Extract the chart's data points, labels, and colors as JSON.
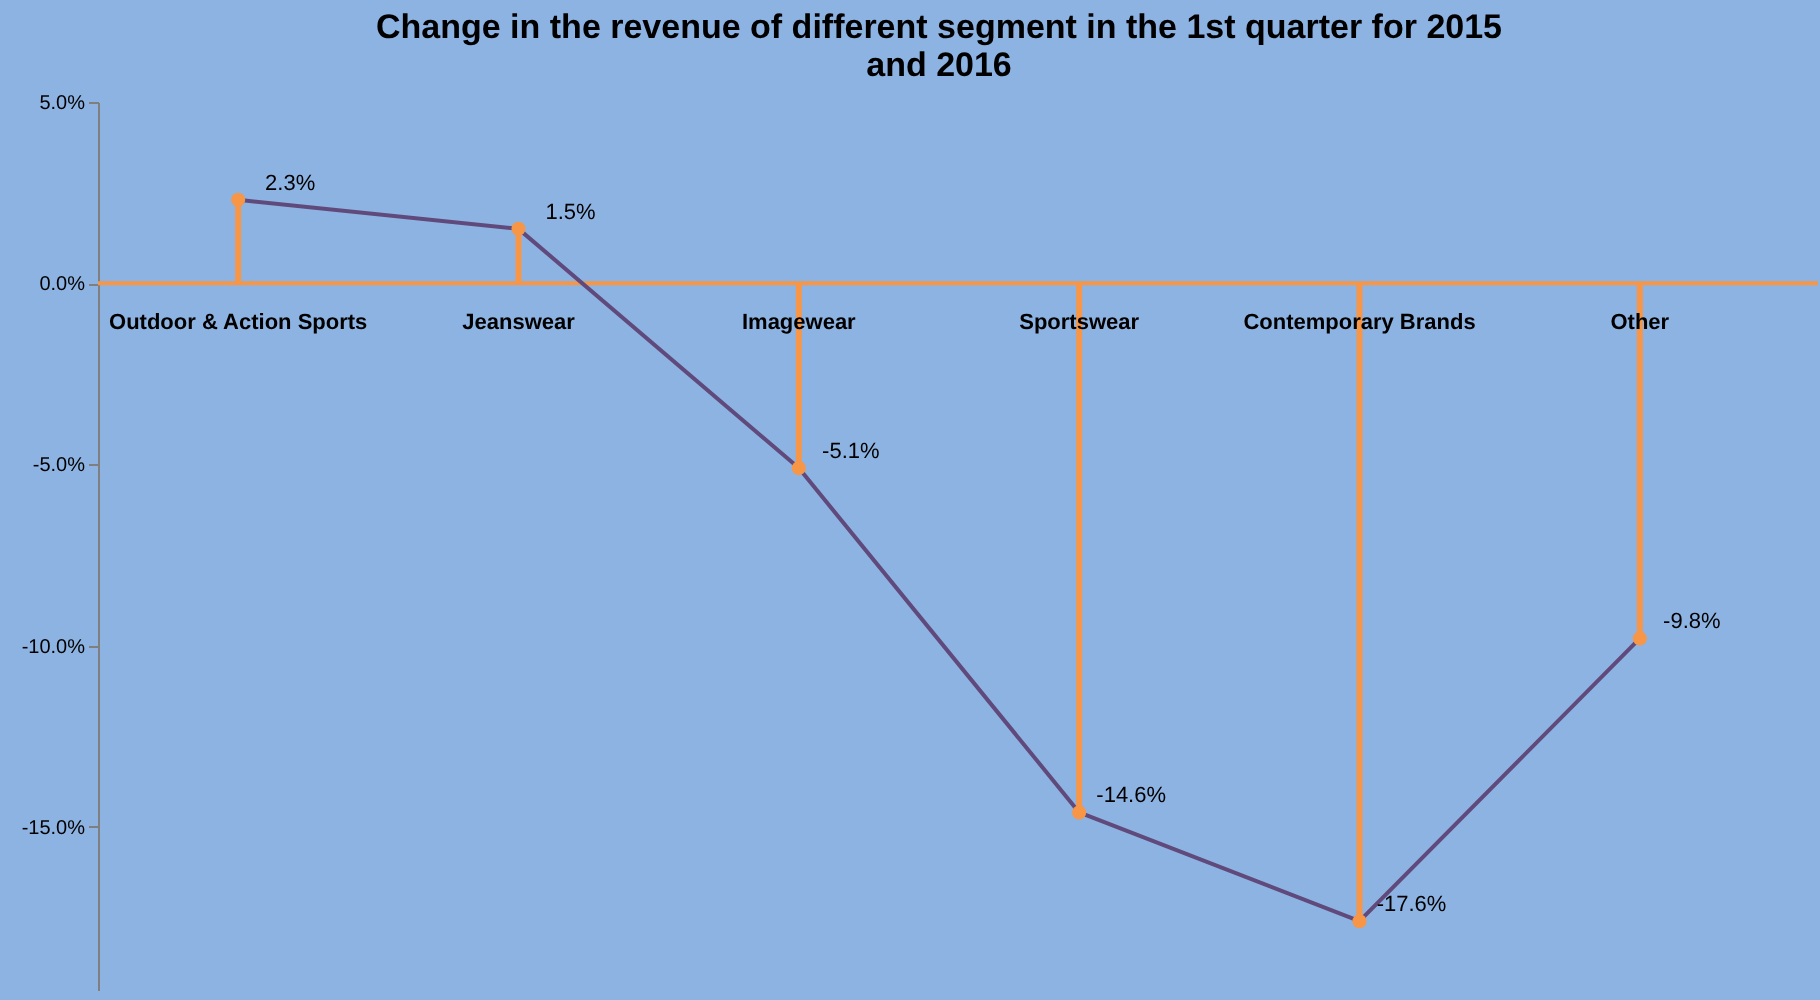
{
  "chart_data": {
    "type": "line",
    "title": [
      "Change in the revenue of different segment in the 1st quarter for 2015",
      "and 2016"
    ],
    "categories": [
      "Outdoor & Action Sports",
      "Jeanswear",
      "Imagewear",
      "Sportswear",
      "Contemporary Brands",
      "Other"
    ],
    "series": [
      {
        "type": "lollipop",
        "color": "#f79646",
        "values": [
          2.3,
          1.5,
          -5.1,
          -14.6,
          -17.6,
          -9.8
        ]
      },
      {
        "type": "line",
        "color": "#604a7b",
        "values": [
          2.3,
          1.5,
          -5.1,
          -14.6,
          -17.6,
          -9.8
        ],
        "value_labels": [
          "2.3%",
          "1.5%",
          "-5.1%",
          "-14.6%",
          "-17.6%",
          "-9.8%"
        ]
      }
    ],
    "ylim": [
      -19.5,
      5
    ],
    "yticks": [
      {
        "value": 5,
        "label": "5.0%"
      },
      {
        "value": 0,
        "label": "0.0%"
      },
      {
        "value": -5,
        "label": "-5.0%"
      },
      {
        "value": -10,
        "label": "-10.0%"
      },
      {
        "value": -15,
        "label": "-15.0%"
      }
    ],
    "grid": false
  }
}
